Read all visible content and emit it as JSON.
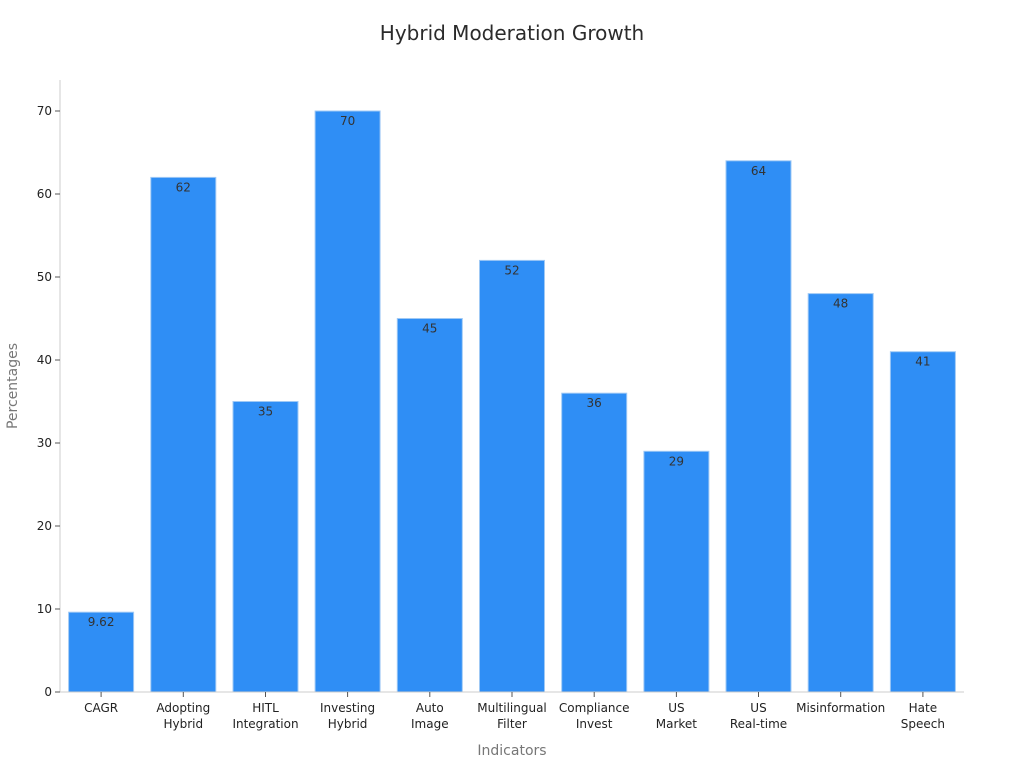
{
  "chart_data": {
    "type": "bar",
    "title": "Hybrid Moderation Growth",
    "xlabel": "Indicators",
    "ylabel": "Percentages",
    "categories": [
      [
        "CAGR"
      ],
      [
        "Adopting",
        "Hybrid"
      ],
      [
        "HITL",
        "Integration"
      ],
      [
        "Investing",
        "Hybrid"
      ],
      [
        "Auto",
        "Image"
      ],
      [
        "Multilingual",
        "Filter"
      ],
      [
        "Compliance",
        "Invest"
      ],
      [
        "US",
        "Market"
      ],
      [
        "US",
        "Real-time"
      ],
      [
        "Misinformation"
      ],
      [
        "Hate",
        "Speech"
      ]
    ],
    "values": [
      9.62,
      62,
      35,
      70,
      45,
      52,
      36,
      29,
      64,
      48,
      41
    ],
    "value_labels": [
      "9.62",
      "62",
      "35",
      "70",
      "45",
      "52",
      "36",
      "29",
      "64",
      "48",
      "41"
    ],
    "ylim": [
      0,
      70
    ],
    "yticks": [
      0,
      10,
      20,
      30,
      40,
      50,
      60,
      70
    ],
    "ytick_labels": [
      "0",
      "10",
      "20",
      "30",
      "40",
      "50",
      "60",
      "70"
    ],
    "grid": false,
    "legend": "none",
    "bar_color": "#2f8ef5"
  }
}
